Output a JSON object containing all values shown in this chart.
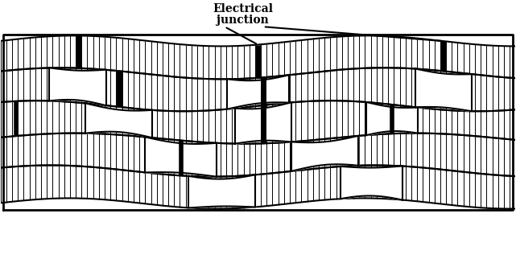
{
  "annotation_text_line1": "Electrical",
  "annotation_text_line2": "junction",
  "annotation_fontsize": 10,
  "annotation_fontweight": "bold",
  "fig_width": 6.41,
  "fig_height": 3.32,
  "dpi": 100,
  "bg_color": "#ffffff",
  "fiber_color": "#000000",
  "striation_color": "#000000",
  "striation_linewidth": 0.7,
  "fiber_linewidth": 1.5,
  "junction_linewidth": 4.5,
  "n_striations": 90,
  "xlim": [
    0,
    10
  ],
  "ylim": [
    0,
    6.5
  ]
}
